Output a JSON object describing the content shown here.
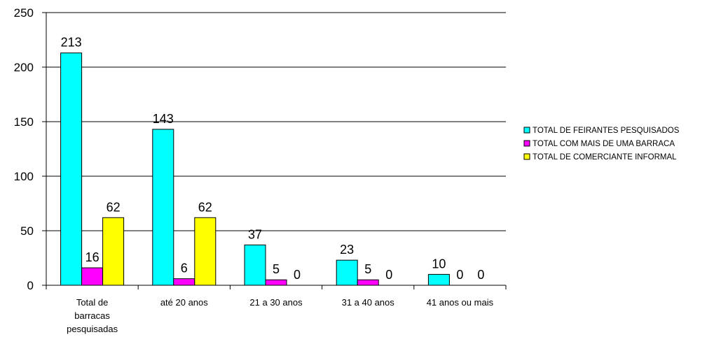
{
  "chart_data": {
    "type": "bar",
    "categories": [
      [
        "Total de",
        "barracas",
        "pesquisadas"
      ],
      [
        "até 20 anos"
      ],
      [
        "21 a 30 anos"
      ],
      [
        "31 a 40 anos"
      ],
      [
        "41 anos ou mais"
      ]
    ],
    "series": [
      {
        "name": "TOTAL DE FEIRANTES PESQUISADOS",
        "color": "#00ffff",
        "values": [
          213,
          143,
          37,
          23,
          10
        ]
      },
      {
        "name": "TOTAL COM MAIS DE UMA BARRACA",
        "color": "#ff00ff",
        "values": [
          16,
          6,
          5,
          5,
          0
        ]
      },
      {
        "name": "TOTAL DE COMERCIANTE INFORMAL",
        "color": "#ffff00",
        "values": [
          62,
          62,
          0,
          0,
          0
        ]
      }
    ],
    "ylim": [
      0,
      250
    ],
    "yticks": [
      0,
      50,
      100,
      150,
      200,
      250
    ],
    "grid": true,
    "data_labels": true,
    "legend_position": "right"
  }
}
